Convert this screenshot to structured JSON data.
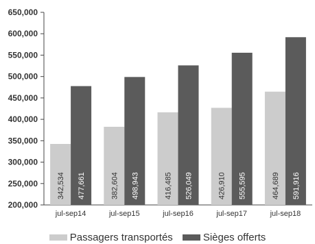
{
  "chart_data": {
    "type": "bar",
    "categories": [
      "jul-sep14",
      "jul-sep15",
      "jul-sep16",
      "jul-sep17",
      "jul-sep18"
    ],
    "series": [
      {
        "name": "Passagers transportés",
        "values": [
          342534,
          382604,
          416485,
          426910,
          464689
        ],
        "labels": [
          "342,534",
          "382,604",
          "416,485",
          "426,910",
          "464,689"
        ],
        "color": "#cccccc",
        "label_color": "#333333"
      },
      {
        "name": "Sièges offerts",
        "values": [
          477661,
          498943,
          526049,
          555595,
          591916
        ],
        "labels": [
          "477,661",
          "498,943",
          "526,049",
          "555,595",
          "591,916"
        ],
        "color": "#5b5b5b",
        "label_color": "#ffffff"
      }
    ],
    "ylim": [
      200000,
      650000
    ],
    "yticks": [
      200000,
      250000,
      300000,
      350000,
      400000,
      450000,
      500000,
      550000,
      600000,
      650000
    ],
    "ytick_labels": [
      "200,000",
      "250,000",
      "300,000",
      "350,000",
      "400,000",
      "450,000",
      "500,000",
      "550,000",
      "600,000",
      "650,000"
    ],
    "legend_position": "bottom",
    "grid": false
  }
}
